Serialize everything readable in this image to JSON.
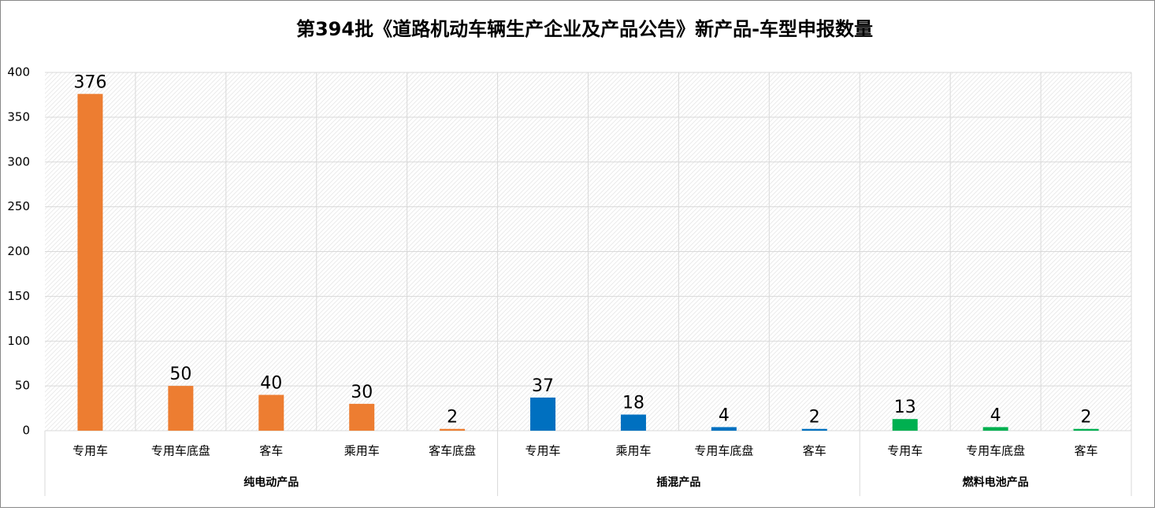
{
  "chart_data": {
    "type": "bar",
    "title": "第394批《道路机动车辆生产企业及产品公告》新产品-车型申报数量",
    "ylim": [
      0,
      400
    ],
    "yticks": [
      0,
      50,
      100,
      150,
      200,
      250,
      300,
      350,
      400
    ],
    "grid": true,
    "series": [
      {
        "name": "纯电动产品",
        "color": "#ed7d31",
        "categories": [
          "专用车",
          "专用车底盘",
          "客车",
          "乘用车",
          "客车底盘"
        ],
        "values": [
          376,
          50,
          40,
          30,
          2
        ]
      },
      {
        "name": "插混产品",
        "color": "#0070c0",
        "categories": [
          "专用车",
          "乘用车",
          "专用车底盘",
          "客车"
        ],
        "values": [
          37,
          18,
          4,
          2
        ]
      },
      {
        "name": "燃料电池产品",
        "color": "#00b050",
        "categories": [
          "专用车",
          "专用车底盘",
          "客车"
        ],
        "values": [
          13,
          4,
          2
        ]
      }
    ]
  }
}
